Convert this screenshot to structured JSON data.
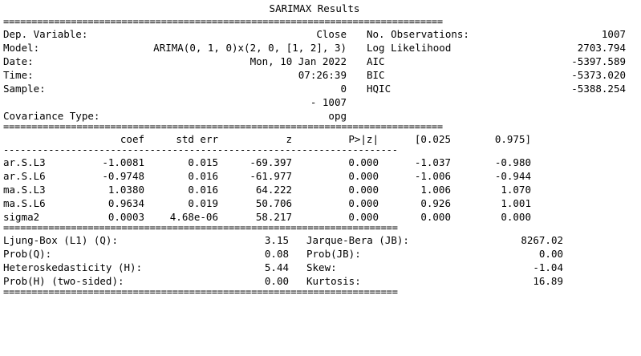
{
  "title": "SARIMAX Results",
  "rules": {
    "double_wide": "==============================================================================",
    "double_narrow": "======================================================================",
    "single_narrow": "----------------------------------------------------------------------"
  },
  "header": {
    "rows": [
      {
        "label": "Dep. Variable:",
        "value": "Close",
        "label2": "No. Observations:",
        "value2": "1007"
      },
      {
        "label": "Model:",
        "value": "ARIMA(0, 1, 0)x(2, 0, [1, 2], 3)",
        "label2": "Log Likelihood",
        "value2": "2703.794"
      },
      {
        "label": "Date:",
        "value": "Mon, 10 Jan 2022",
        "label2": "AIC",
        "value2": "-5397.589"
      },
      {
        "label": "Time:",
        "value": "07:26:39",
        "label2": "BIC",
        "value2": "-5373.020"
      },
      {
        "label": "Sample:",
        "value": "0",
        "label2": "HQIC",
        "value2": "-5388.254"
      },
      {
        "label": "",
        "value": "- 1007",
        "label2": "",
        "value2": ""
      },
      {
        "label": "Covariance Type:",
        "value": "opg",
        "label2": "",
        "value2": ""
      }
    ]
  },
  "coef_table": {
    "columns": [
      "coef",
      "std err",
      "z",
      "P>|z|",
      "[0.025",
      "0.975]"
    ],
    "rows": [
      {
        "name": "ar.S.L3",
        "coef": "-1.0081",
        "std_err": "0.015",
        "z": "-69.397",
        "p": "0.000",
        "lo": "-1.037",
        "hi": "-0.980"
      },
      {
        "name": "ar.S.L6",
        "coef": "-0.9748",
        "std_err": "0.016",
        "z": "-61.977",
        "p": "0.000",
        "lo": "-1.006",
        "hi": "-0.944"
      },
      {
        "name": "ma.S.L3",
        "coef": "1.0380",
        "std_err": "0.016",
        "z": "64.222",
        "p": "0.000",
        "lo": "1.006",
        "hi": "1.070"
      },
      {
        "name": "ma.S.L6",
        "coef": "0.9634",
        "std_err": "0.019",
        "z": "50.706",
        "p": "0.000",
        "lo": "0.926",
        "hi": "1.001"
      },
      {
        "name": "sigma2",
        "coef": "0.0003",
        "std_err": "4.68e-06",
        "z": "58.217",
        "p": "0.000",
        "lo": "0.000",
        "hi": "0.000"
      }
    ]
  },
  "diagnostics": {
    "rows": [
      {
        "label": "Ljung-Box (L1) (Q):",
        "value": "3.15",
        "label2": "Jarque-Bera (JB):",
        "value2": "8267.02"
      },
      {
        "label": "Prob(Q):",
        "value": "0.08",
        "label2": "Prob(JB):",
        "value2": "0.00"
      },
      {
        "label": "Heteroskedasticity (H):",
        "value": "5.44",
        "label2": "Skew:",
        "value2": "-1.04"
      },
      {
        "label": "Prob(H) (two-sided):",
        "value": "0.00",
        "label2": "Kurtosis:",
        "value2": "16.89"
      }
    ]
  }
}
